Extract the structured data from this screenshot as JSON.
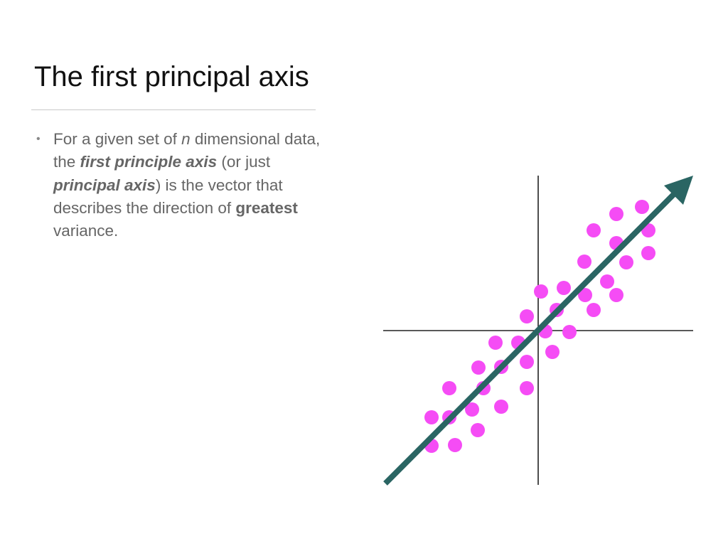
{
  "slide": {
    "title": "The first principal axis",
    "bullet": {
      "t1": "For a given set of ",
      "n": "n",
      "t2": " dimensional data, the ",
      "first_principle_axis": "first principle axis",
      "t3": " (or just ",
      "principal_axis": "principal axis",
      "t4": ") is the vector that describes the direction of ",
      "greatest": "greatest",
      "t5": " variance."
    }
  },
  "diagram": {
    "point_color": "#f54cf5",
    "arrow_color": "#2a6563",
    "axis_color": "#222222",
    "icon": "arrow-icon"
  }
}
